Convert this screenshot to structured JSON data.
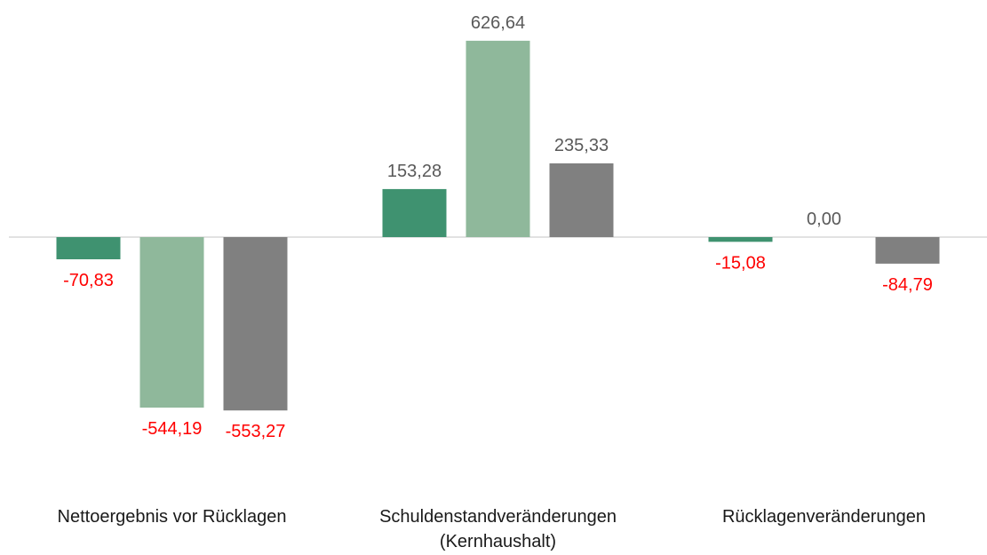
{
  "chart_data": {
    "type": "bar",
    "categories": [
      "Nettoergebnis vor Rücklagen",
      "Schuldenstandveränderungen\n(Kernhaushalt)",
      "Rücklagenveränderungen"
    ],
    "series": [
      {
        "color": "#3f9270",
        "values": [
          -70.83,
          153.28,
          -15.08
        ],
        "value_labels": [
          "-70,83",
          "153,28",
          "-15,08"
        ]
      },
      {
        "color": "#8fb89b",
        "values": [
          -544.19,
          626.64,
          0.0
        ],
        "value_labels": [
          "-544,19",
          "626,64",
          "0,00"
        ]
      },
      {
        "color": "#808080",
        "values": [
          -553.27,
          235.33,
          -84.79
        ],
        "value_labels": [
          "-553,27",
          "235,33",
          "-84,79"
        ]
      }
    ],
    "ylim": [
      -700,
      700
    ],
    "label_color": "#595959",
    "negative_label_color": "#ff0000"
  }
}
